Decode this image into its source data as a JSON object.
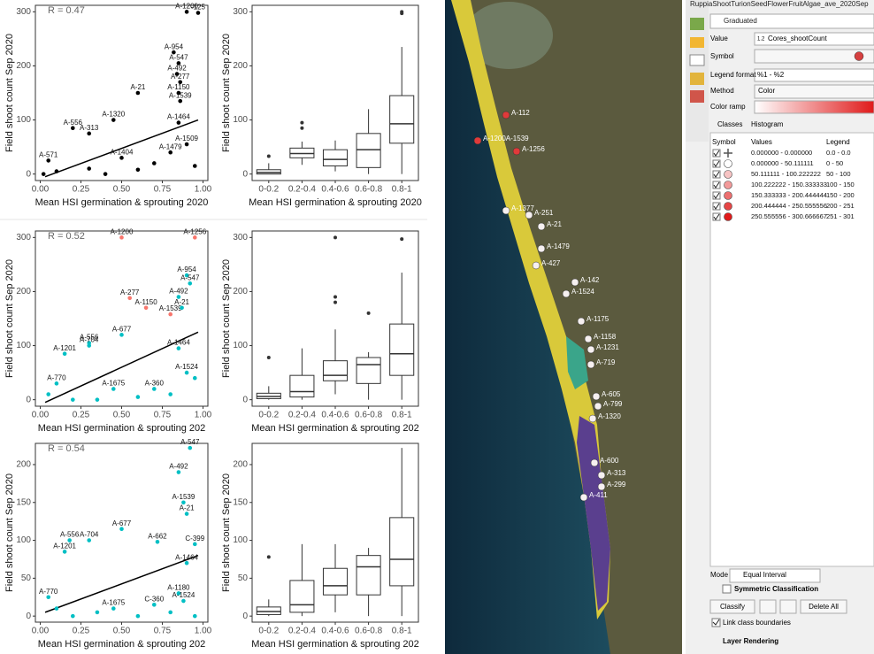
{
  "chart_data": [
    {
      "type": "scatter",
      "annotation": "R = 0.47",
      "x_label": "Mean HSI germination & sprouting 2020",
      "y_label": "Field shoot count Sep 2020",
      "x": [
        0.9,
        0.97,
        0.82,
        0.85,
        0.84,
        0.86,
        0.85,
        0.6,
        0.86,
        0.2,
        0.3,
        0.45,
        0.85,
        0.05,
        0.5,
        0.8,
        0.9,
        0.1,
        0.3,
        0.6,
        0.7,
        0.95,
        0.4,
        0.02
      ],
      "values": [
        300,
        298,
        225,
        205,
        185,
        170,
        150,
        150,
        135,
        85,
        75,
        100,
        95,
        25,
        30,
        40,
        55,
        5,
        10,
        8,
        20,
        15,
        0,
        0
      ],
      "point_labels": [
        "A-1200",
        "-125",
        "A-954",
        "A-547",
        "A-492",
        "A-277",
        "A-1150",
        "A-21",
        "A-1539",
        "A-556",
        "A-313",
        "A-1320",
        "A-1464",
        "A-571",
        "A-1404",
        "A-1479",
        "A-1509",
        null,
        null,
        null,
        null,
        null,
        null,
        null
      ],
      "color": "#000000",
      "trend": {
        "x": [
          0.03,
          0.97
        ],
        "values": [
          -5,
          100
        ]
      },
      "xlim": [
        -0.03,
        1.03
      ],
      "xticks": [
        {
          "value": 0,
          "label": "0.00"
        },
        {
          "value": 0.25,
          "label": "0.25"
        },
        {
          "value": 0.5,
          "label": "0.50"
        },
        {
          "value": 0.75,
          "label": "0.75"
        },
        {
          "value": 1,
          "label": "1.00"
        }
      ],
      "ylim": [
        -12,
        312
      ],
      "yticks": [
        0,
        100,
        200,
        300
      ]
    },
    {
      "type": "box",
      "x_label": "Mean HSI germination & sprouting 2020",
      "y_label": "Field shoot count Sep 2020",
      "categories": [
        "0-0.2",
        "0.2-0.4",
        "0.4-0.6",
        "0.6-0.8",
        "0.8-1"
      ],
      "stats": [
        [
          0,
          0,
          3,
          8,
          20
        ],
        [
          17,
          30,
          38,
          48,
          60
        ],
        [
          5,
          15,
          27,
          45,
          62
        ],
        [
          0,
          12,
          45,
          75,
          120
        ],
        [
          0,
          57,
          93,
          145,
          235
        ]
      ],
      "outliers": [
        [
          33
        ],
        [
          85,
          95
        ],
        [],
        [],
        [
          297,
          300
        ]
      ],
      "ylim": [
        -12,
        312
      ],
      "yticks": [
        0,
        100,
        200,
        300
      ]
    },
    {
      "type": "scatter",
      "annotation": "R = 0.52",
      "x_label": "Mean HSI germination & sprouting 202",
      "y_label": "Field shoot count Sep 2020",
      "x": [
        0.5,
        0.95,
        0.9,
        0.92,
        0.85,
        0.55,
        0.65,
        0.8,
        0.87,
        0.3,
        0.3,
        0.5,
        0.15,
        0.85,
        0.1,
        0.45,
        0.7,
        0.9,
        0.2,
        0.35,
        0.6,
        0.8,
        0.05,
        0.95
      ],
      "values": [
        300,
        300,
        230,
        215,
        190,
        188,
        170,
        158,
        170,
        105,
        100,
        120,
        85,
        95,
        30,
        20,
        20,
        50,
        0,
        0,
        5,
        10,
        10,
        40
      ],
      "point_labels": [
        "A-1200",
        "A-1256",
        "A-954",
        "A-547",
        "A-492",
        "A-277",
        "A-1150",
        "A-1539",
        "A-21",
        "A-556",
        "A-704",
        "A-677",
        "A-1201",
        "A-1464",
        "A-770",
        "A-1675",
        "A-360",
        "A-1524",
        null,
        null,
        null,
        null,
        null,
        null
      ],
      "colors": [
        "#f8766d",
        "#f8766d",
        "#00bfc4",
        "#00bfc4",
        "#00bfc4",
        "#f8766d",
        "#f8766d",
        "#f8766d",
        "#00bfc4",
        "#00bfc4",
        "#00bfc4",
        "#00bfc4",
        "#00bfc4",
        "#00bfc4",
        "#00bfc4",
        "#00bfc4",
        "#00bfc4",
        "#00bfc4",
        "#00bfc4",
        "#00bfc4",
        "#00bfc4",
        "#00bfc4",
        "#00bfc4",
        "#00bfc4"
      ],
      "trend": {
        "x": [
          0.03,
          0.97
        ],
        "values": [
          -5,
          125
        ]
      },
      "xlim": [
        -0.03,
        1.03
      ],
      "xticks": [
        {
          "value": 0,
          "label": "0.00"
        },
        {
          "value": 0.25,
          "label": "0.25"
        },
        {
          "value": 0.5,
          "label": "0.50"
        },
        {
          "value": 0.75,
          "label": "0.75"
        },
        {
          "value": 1,
          "label": "1.00"
        }
      ],
      "ylim": [
        -12,
        312
      ],
      "yticks": [
        0,
        100,
        200,
        300
      ]
    },
    {
      "type": "box",
      "x_label": "Mean HSI germination & sprouting 202",
      "y_label": "Field shoot count Sep 2020",
      "categories": [
        "0-0.2",
        "0.2-0.4",
        "0.4-0.6",
        "0.6-0.8",
        "0.8-1"
      ],
      "stats": [
        [
          0,
          2,
          6,
          12,
          25
        ],
        [
          0,
          5,
          15,
          45,
          95
        ],
        [
          10,
          35,
          45,
          72,
          130
        ],
        [
          0,
          30,
          65,
          78,
          88
        ],
        [
          0,
          45,
          85,
          140,
          235
        ]
      ],
      "outliers": [
        [
          78
        ],
        [],
        [
          180,
          190,
          300
        ],
        [
          160
        ],
        [
          297
        ]
      ],
      "ylim": [
        -12,
        312
      ],
      "yticks": [
        0,
        100,
        200,
        300
      ]
    },
    {
      "type": "scatter",
      "annotation": "R = 0.54",
      "x_label": "Mean HSI germination & sprouting 202",
      "y_label": "Field shoot count Sep 2020",
      "x": [
        0.92,
        0.85,
        0.88,
        0.9,
        0.5,
        0.3,
        0.18,
        0.15,
        0.72,
        0.95,
        0.9,
        0.85,
        0.88,
        0.05,
        0.45,
        0.7,
        0.2,
        0.35,
        0.6,
        0.8,
        0.1,
        0.95
      ],
      "values": [
        222,
        190,
        150,
        135,
        115,
        100,
        100,
        85,
        98,
        95,
        70,
        30,
        20,
        25,
        10,
        15,
        0,
        5,
        0,
        5,
        10,
        0
      ],
      "point_labels": [
        "A-547",
        "A-492",
        "A-1539",
        "A-21",
        "A-677",
        "A-704",
        "A-556",
        "A-1201",
        "A-662",
        "C-399",
        "A-1464",
        "A-1180",
        "A-1524",
        "A-770",
        "A-1675",
        "C-360",
        null,
        null,
        null,
        null,
        null,
        null
      ],
      "color": "#00bfc4",
      "trend": {
        "x": [
          0.03,
          0.97
        ],
        "values": [
          5,
          80
        ]
      },
      "xlim": [
        -0.03,
        1.03
      ],
      "xticks": [
        {
          "value": 0,
          "label": "0.00"
        },
        {
          "value": 0.25,
          "label": "0.25"
        },
        {
          "value": 0.5,
          "label": "0.50"
        },
        {
          "value": 0.75,
          "label": "0.75"
        },
        {
          "value": 1,
          "label": "1.00"
        }
      ],
      "ylim": [
        -8,
        228
      ],
      "yticks": [
        0,
        50,
        100,
        150,
        200
      ]
    },
    {
      "type": "box",
      "x_label": "Mean HSI germination & sprouting 202",
      "y_label": "Field shoot count Sep 2020",
      "categories": [
        "0-0.2",
        "0.2-0.4",
        "0.4-0.6",
        "0.6-0.8",
        "0.8-1"
      ],
      "stats": [
        [
          0,
          2,
          6,
          12,
          22
        ],
        [
          0,
          5,
          15,
          47,
          95
        ],
        [
          5,
          28,
          40,
          63,
          95
        ],
        [
          0,
          28,
          65,
          80,
          90
        ],
        [
          0,
          40,
          75,
          130,
          222
        ]
      ],
      "outliers": [
        [
          78
        ],
        [],
        [],
        [],
        []
      ],
      "ylim": [
        -8,
        228
      ],
      "yticks": [
        0,
        50,
        100,
        150,
        200
      ]
    }
  ],
  "map": {
    "labels": [
      "A-112",
      "A-1200A-1539",
      "A-1256",
      "A-1377",
      "A-251",
      "A-21",
      "A-1479",
      "A-427",
      "A-142",
      "A-1524",
      "A-1175",
      "A-1158",
      "A-1231",
      "A-719",
      "A-605",
      "A-799",
      "A-1320",
      "A-600",
      "A-313",
      "A-299",
      "A-411"
    ]
  },
  "panel": {
    "window_title": "RuppiaShootTurionSeedFlowerFruitAlgae_ave_2020Sep",
    "renderer": "Graduated",
    "value_label": "Value",
    "field_type": "1.2",
    "value_field": "Cores_shootCount",
    "symbol_label": "Symbol",
    "legend_format_label": "Legend format",
    "legend_format": "%1 - %2",
    "method_label": "Method",
    "method": "Color",
    "color_ramp_label": "Color ramp",
    "tabs": [
      "Classes",
      "Histogram"
    ],
    "columns": [
      "Symbol",
      "Values",
      "Legend"
    ],
    "classes": [
      {
        "values": "0.000000 - 0.000000",
        "legend": "0.0 - 0.0",
        "color": "#ffffff"
      },
      {
        "values": "0.000000 - 50.111111",
        "legend": "0 - 50",
        "color": "#ffffff"
      },
      {
        "values": "50.111111 - 100.222222",
        "legend": "50 - 100",
        "color": "#f7c4c4"
      },
      {
        "values": "100.222222 - 150.333333",
        "legend": "100 - 150",
        "color": "#f29a9a"
      },
      {
        "values": "150.333333 - 200.444444",
        "legend": "150 - 200",
        "color": "#ec6f6f"
      },
      {
        "values": "200.444444 - 250.555556",
        "legend": "200 - 251",
        "color": "#e64545"
      },
      {
        "values": "250.555556 - 300.666667",
        "legend": "251 - 301",
        "color": "#e01a1a"
      }
    ],
    "mode_label": "Mode",
    "mode": "Equal Interval",
    "symmetric": "Symmetric Classification",
    "buttons": [
      "Classify",
      "Delete All"
    ],
    "link_boundaries": "Link class boundaries",
    "layer_rendering": "Layer Rendering"
  }
}
